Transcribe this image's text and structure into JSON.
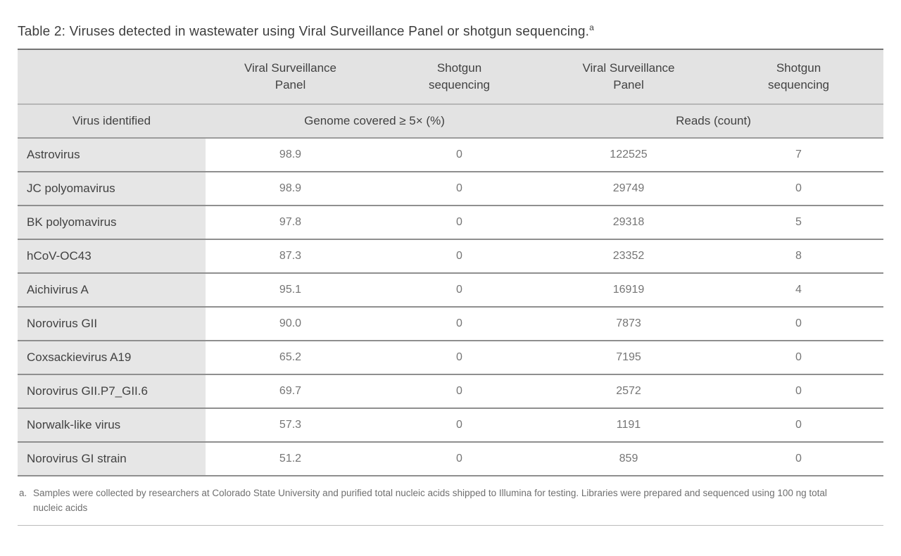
{
  "page": {
    "title": "Table 2: Viruses detected in wastewater using Viral Surveillance Panel or shotgun sequencing.",
    "title_marker": "a"
  },
  "table": {
    "columns": {
      "virus_header": "Virus identified",
      "group_genome": "Genome covered ≥ 5× (%)",
      "group_reads": "Reads (count)",
      "method_headers": [
        "Viral Surveillance Panel",
        "Shotgun sequencing",
        "Viral Surveillance Panel",
        "Shotgun sequencing"
      ]
    },
    "rows": [
      {
        "virus": "Astrovirus",
        "vsp_genome": "98.9",
        "sg_genome": "0",
        "vsp_reads": "122525",
        "sg_reads": "7"
      },
      {
        "virus": "JC polyomavirus",
        "vsp_genome": "98.9",
        "sg_genome": "0",
        "vsp_reads": "29749",
        "sg_reads": "0"
      },
      {
        "virus": "BK polyomavirus",
        "vsp_genome": "97.8",
        "sg_genome": "0",
        "vsp_reads": "29318",
        "sg_reads": "5"
      },
      {
        "virus": "hCoV-OC43",
        "vsp_genome": "87.3",
        "sg_genome": "0",
        "vsp_reads": "23352",
        "sg_reads": "8"
      },
      {
        "virus": "Aichivirus A",
        "vsp_genome": "95.1",
        "sg_genome": "0",
        "vsp_reads": "16919",
        "sg_reads": "4"
      },
      {
        "virus": "Norovirus GII",
        "vsp_genome": "90.0",
        "sg_genome": "0",
        "vsp_reads": "7873",
        "sg_reads": "0"
      },
      {
        "virus": "Coxsackievirus A19",
        "vsp_genome": "65.2",
        "sg_genome": "0",
        "vsp_reads": "7195",
        "sg_reads": "0"
      },
      {
        "virus": "Norovirus GII.P7_GII.6",
        "vsp_genome": "69.7",
        "sg_genome": "0",
        "vsp_reads": "2572",
        "sg_reads": "0"
      },
      {
        "virus": "Norwalk-like virus",
        "vsp_genome": "57.3",
        "sg_genome": "0",
        "vsp_reads": "1191",
        "sg_reads": "0"
      },
      {
        "virus": "Norovirus GI strain",
        "vsp_genome": "51.2",
        "sg_genome": "0",
        "vsp_reads": "859",
        "sg_reads": "0"
      }
    ]
  },
  "footnote": {
    "marker": "a.",
    "text": "Samples were collected by researchers at Colorado State University and purified total nucleic acids shipped to Illumina for testing. Libraries were prepared and sequenced using 100 ng total nucleic acids"
  },
  "colors": {
    "header_bg": "#e3e3e3",
    "row_label_bg": "#e6e6e6",
    "border_top": "#757575",
    "border_row": "#8f8f8f",
    "text_primary": "#424242",
    "text_value": "#757575"
  }
}
